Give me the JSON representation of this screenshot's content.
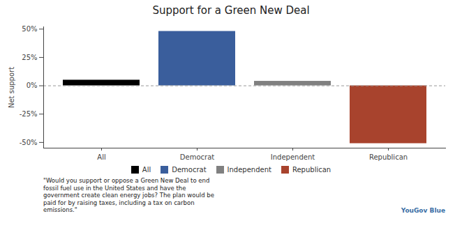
{
  "chart_data": {
    "type": "bar",
    "title": "Support for a Green New Deal",
    "y_label": "Net support",
    "categories": [
      "All",
      "Democrat",
      "Independent",
      "Republican"
    ],
    "values": [
      5,
      48,
      4,
      -51
    ],
    "colors": [
      "#000000",
      "#3a5e9c",
      "#808080",
      "#a8432d"
    ],
    "ylim": [
      -55,
      52
    ],
    "yticks": [
      {
        "value": -50,
        "label": "-50%"
      },
      {
        "value": -25,
        "label": "-25%"
      },
      {
        "value": 0,
        "label": "0%"
      },
      {
        "value": 25,
        "label": "25%"
      },
      {
        "value": 50,
        "label": "50%"
      }
    ],
    "grid": false,
    "legend": "bottom",
    "caption": "\"Would you support or oppose a Green New Deal to end fossil fuel use in the United States and have the government create clean energy jobs? The plan would be paid for by raising taxes, including a tax on carbon emissions.\"",
    "source": "YouGov Blue"
  }
}
